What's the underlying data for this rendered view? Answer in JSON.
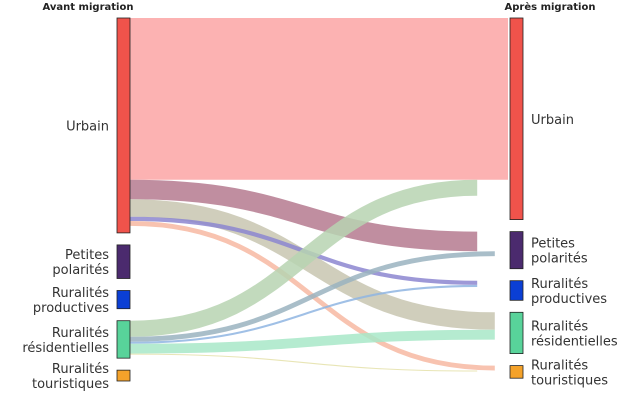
{
  "chart_data": {
    "type": "sankey",
    "title": "",
    "left_header": "Avant migration",
    "right_header": "Après migration",
    "left_nodes": [
      {
        "id": "urbain",
        "label": [
          "Urbain"
        ],
        "value": 61.4,
        "color": "#f0534b"
      },
      {
        "id": "petites",
        "label": [
          "Petites",
          "polarités"
        ],
        "value": 9.6,
        "color": "#4b2a6e"
      },
      {
        "id": "productives",
        "label": [
          "Ruralités",
          "productives"
        ],
        "value": 5.2,
        "color": "#0b3fd4"
      },
      {
        "id": "residentielles",
        "label": [
          "Ruralités",
          "résidentielles"
        ],
        "value": 10.7,
        "color": "#58d39a"
      },
      {
        "id": "touristiques",
        "label": [
          "Ruralités",
          "touristiques"
        ],
        "value": 3.1,
        "color": "#f4a22a"
      }
    ],
    "right_nodes": [
      {
        "id": "urbain",
        "label": [
          "Urbain"
        ],
        "value": 57.6,
        "color": "#f0534b"
      },
      {
        "id": "petites",
        "label": [
          "Petites",
          "polarités"
        ],
        "value": 10.6,
        "color": "#4b2a6e"
      },
      {
        "id": "productives",
        "label": [
          "Ruralités",
          "productives"
        ],
        "value": 5.6,
        "color": "#0b3fd4"
      },
      {
        "id": "residentielles",
        "label": [
          "Ruralités",
          "résidentielles"
        ],
        "value": 11.8,
        "color": "#58d39a"
      },
      {
        "id": "touristiques",
        "label": [
          "Ruralités",
          "touristiques"
        ],
        "value": 3.6,
        "color": "#f4a22a"
      }
    ],
    "links": [
      {
        "source": "urbain",
        "target": "urbain",
        "value": 46.2,
        "color": "#fca5a5"
      },
      {
        "source": "urbain",
        "target": "petites",
        "value": 5.6,
        "color": "#b57a8f"
      },
      {
        "source": "urbain",
        "target": "residentielles",
        "value": 5.0,
        "color": "#c8c6b0"
      },
      {
        "source": "urbain",
        "target": "productives",
        "value": 1.2,
        "color": "#8c86d0"
      },
      {
        "source": "urbain",
        "target": "touristiques",
        "value": 1.4,
        "color": "#f7b9a2"
      },
      {
        "source": "residentielles",
        "target": "urbain",
        "value": 4.6,
        "color": "#b7d3b2"
      },
      {
        "source": "residentielles",
        "target": "petites",
        "value": 1.4,
        "color": "#9ab3bf"
      },
      {
        "source": "residentielles",
        "target": "productives",
        "value": 0.6,
        "color": "#8fb5e2"
      },
      {
        "source": "residentielles",
        "target": "residentielles",
        "value": 2.8,
        "color": "#a8e8c8"
      },
      {
        "source": "residentielles",
        "target": "touristiques",
        "value": 0.3,
        "color": "#e4e0a8"
      }
    ]
  }
}
